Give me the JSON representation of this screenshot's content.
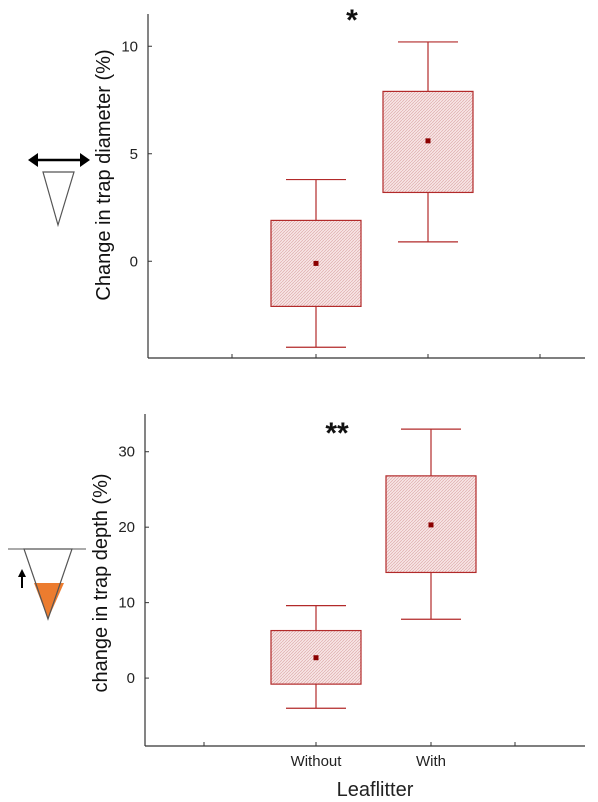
{
  "chart_data": [
    {
      "type": "box",
      "ylabel": "Change in trap diameter (%)",
      "xlabel": "",
      "categories": [
        "Without",
        "With"
      ],
      "show_category_labels": false,
      "ylim": [
        -4.5,
        11.5
      ],
      "yticks": [
        0,
        5,
        10
      ],
      "significance": "*",
      "boxes": [
        {
          "category": "Without",
          "whisker_low": -4.0,
          "q1": -2.1,
          "mean": -0.1,
          "q3": 1.9,
          "whisker_high": 3.8
        },
        {
          "category": "With",
          "whisker_low": 0.9,
          "q1": 3.2,
          "mean": 5.6,
          "q3": 7.9,
          "whisker_high": 10.2
        }
      ],
      "grid": false,
      "colors": {
        "box_stroke": "#b22a2a",
        "box_fill": "#f6dede",
        "mean_marker": "#8b0000"
      },
      "icon": "horizontal-double-arrow-above-empty-cone"
    },
    {
      "type": "box",
      "ylabel": "change in trap depth (%)",
      "xlabel": "Leaflitter",
      "categories": [
        "Without",
        "With"
      ],
      "show_category_labels": true,
      "ylim": [
        -9,
        35
      ],
      "yticks": [
        0,
        10,
        20,
        30
      ],
      "significance": "**",
      "boxes": [
        {
          "category": "Without",
          "whisker_low": -4.0,
          "q1": -0.8,
          "mean": 2.7,
          "q3": 6.3,
          "whisker_high": 9.6
        },
        {
          "category": "With",
          "whisker_low": 7.8,
          "q1": 14.0,
          "mean": 20.3,
          "q3": 26.8,
          "whisker_high": 33.0
        }
      ],
      "grid": false,
      "colors": {
        "box_stroke": "#b22a2a",
        "box_fill": "#f6dede",
        "mean_marker": "#8b0000"
      },
      "icon": "up-arrow-beside-cone-filled-orange"
    }
  ]
}
